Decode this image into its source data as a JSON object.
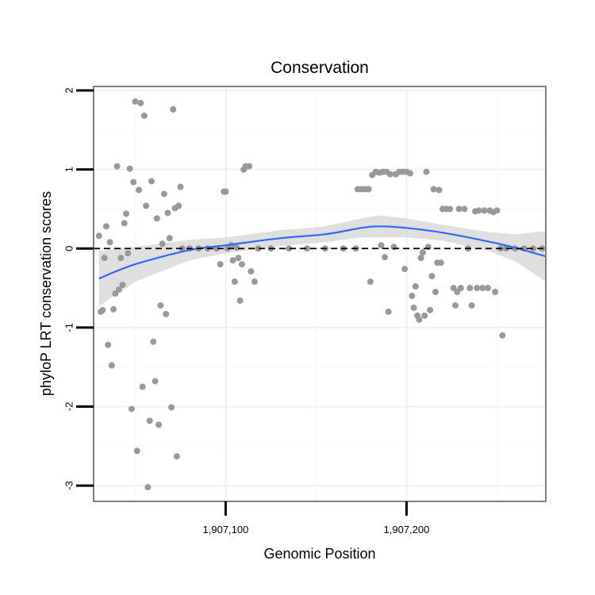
{
  "chart_data": {
    "type": "scatter",
    "title": "Conservation",
    "xlabel": "Genomic Position",
    "ylabel": "phyloP LRT conservation scores",
    "xlim": [
      1907027,
      1907277
    ],
    "ylim": [
      -3.2,
      2.05
    ],
    "x_ticks": [
      {
        "value": 1907100,
        "label": "1,907,100"
      },
      {
        "value": 1907200,
        "label": "1,907,200"
      }
    ],
    "y_ticks": [
      {
        "value": 2,
        "label": "2"
      },
      {
        "value": 1,
        "label": "1"
      },
      {
        "value": 0,
        "label": "0"
      },
      {
        "value": -1,
        "label": "-1"
      },
      {
        "value": -2,
        "label": "-2"
      },
      {
        "value": -3,
        "label": "-3"
      }
    ],
    "reference_line": {
      "y": 0,
      "style": "dashed"
    },
    "colors": {
      "points": "#999999",
      "smooth": "#3366ff",
      "ribbon": "#d9d9d9",
      "frame": "#808080"
    },
    "points": [
      [
        1907030,
        0.16
      ],
      [
        1907031,
        -0.8
      ],
      [
        1907032,
        -0.78
      ],
      [
        1907033,
        -0.12
      ],
      [
        1907034,
        0.28
      ],
      [
        1907035,
        -1.22
      ],
      [
        1907036,
        0.08
      ],
      [
        1907037,
        -1.48
      ],
      [
        1907038,
        -0.77
      ],
      [
        1907039,
        -0.57
      ],
      [
        1907040,
        1.04
      ],
      [
        1907041,
        -0.52
      ],
      [
        1907042,
        -0.12
      ],
      [
        1907043,
        -0.46
      ],
      [
        1907044,
        0.32
      ],
      [
        1907045,
        0.44
      ],
      [
        1907046,
        -0.06
      ],
      [
        1907047,
        1.01
      ],
      [
        1907048,
        -2.03
      ],
      [
        1907049,
        0.84
      ],
      [
        1907050,
        1.86
      ],
      [
        1907051,
        -2.56
      ],
      [
        1907052,
        0.74
      ],
      [
        1907053,
        1.84
      ],
      [
        1907054,
        -1.75
      ],
      [
        1907055,
        1.68
      ],
      [
        1907056,
        0.54
      ],
      [
        1907057,
        -3.02
      ],
      [
        1907058,
        -2.18
      ],
      [
        1907059,
        0.85
      ],
      [
        1907060,
        -1.18
      ],
      [
        1907061,
        -1.68
      ],
      [
        1907062,
        0.38
      ],
      [
        1907063,
        -2.23
      ],
      [
        1907064,
        -0.72
      ],
      [
        1907065,
        0.06
      ],
      [
        1907066,
        0.69
      ],
      [
        1907067,
        -0.83
      ],
      [
        1907068,
        0.45
      ],
      [
        1907069,
        0.13
      ],
      [
        1907070,
        -2.01
      ],
      [
        1907071,
        1.76
      ],
      [
        1907072,
        0.51
      ],
      [
        1907073,
        -2.63
      ],
      [
        1907074,
        0.54
      ],
      [
        1907075,
        0.78
      ],
      [
        1907076,
        0.0
      ],
      [
        1907080,
        0.0
      ],
      [
        1907085,
        0.0
      ],
      [
        1907090,
        0.0
      ],
      [
        1907095,
        0.0
      ],
      [
        1907097,
        -0.2
      ],
      [
        1907099,
        0.72
      ],
      [
        1907100,
        0.72
      ],
      [
        1907101,
        0.0
      ],
      [
        1907103,
        0.04
      ],
      [
        1907104,
        -0.15
      ],
      [
        1907105,
        -0.42
      ],
      [
        1907106,
        0.01
      ],
      [
        1907107,
        -0.12
      ],
      [
        1907108,
        -0.66
      ],
      [
        1907109,
        -0.2
      ],
      [
        1907110,
        1.0
      ],
      [
        1907111,
        1.04
      ],
      [
        1907113,
        1.04
      ],
      [
        1907114,
        -0.29
      ],
      [
        1907116,
        -0.42
      ],
      [
        1907118,
        0.0
      ],
      [
        1907125,
        0.0
      ],
      [
        1907135,
        0.0
      ],
      [
        1907145,
        0.0
      ],
      [
        1907155,
        0.0
      ],
      [
        1907165,
        0.0
      ],
      [
        1907172,
        0.0
      ],
      [
        1907173,
        0.75
      ],
      [
        1907175,
        0.75
      ],
      [
        1907177,
        0.75
      ],
      [
        1907179,
        0.75
      ],
      [
        1907180,
        -0.42
      ],
      [
        1907181,
        0.93
      ],
      [
        1907183,
        0.97
      ],
      [
        1907185,
        0.96
      ],
      [
        1907186,
        0.04
      ],
      [
        1907187,
        0.97
      ],
      [
        1907188,
        -0.11
      ],
      [
        1907189,
        0.97
      ],
      [
        1907190,
        -0.8
      ],
      [
        1907191,
        0.94
      ],
      [
        1907193,
        0.02
      ],
      [
        1907194,
        0.94
      ],
      [
        1907196,
        0.97
      ],
      [
        1907198,
        0.97
      ],
      [
        1907199,
        -0.26
      ],
      [
        1907200,
        0.97
      ],
      [
        1907202,
        0.95
      ],
      [
        1907203,
        -0.6
      ],
      [
        1907204,
        -0.75
      ],
      [
        1907205,
        -0.48
      ],
      [
        1907206,
        -0.85
      ],
      [
        1907207,
        -0.9
      ],
      [
        1907208,
        -0.12
      ],
      [
        1907209,
        -0.05
      ],
      [
        1907210,
        -0.85
      ],
      [
        1907211,
        0.97
      ],
      [
        1907212,
        0.02
      ],
      [
        1907213,
        -0.78
      ],
      [
        1907214,
        -0.35
      ],
      [
        1907215,
        0.75
      ],
      [
        1907216,
        -0.55
      ],
      [
        1907217,
        -0.18
      ],
      [
        1907218,
        0.74
      ],
      [
        1907219,
        -0.18
      ],
      [
        1907220,
        0.5
      ],
      [
        1907222,
        0.5
      ],
      [
        1907224,
        0.5
      ],
      [
        1907226,
        -0.5
      ],
      [
        1907227,
        -0.72
      ],
      [
        1907228,
        -0.55
      ],
      [
        1907229,
        0.5
      ],
      [
        1907230,
        -0.5
      ],
      [
        1907232,
        0.5
      ],
      [
        1907234,
        0.0
      ],
      [
        1907235,
        -0.5
      ],
      [
        1907236,
        -0.72
      ],
      [
        1907238,
        0.47
      ],
      [
        1907239,
        -0.5
      ],
      [
        1907240,
        0.48
      ],
      [
        1907242,
        -0.5
      ],
      [
        1907243,
        0.48
      ],
      [
        1907245,
        -0.5
      ],
      [
        1907246,
        0.48
      ],
      [
        1907248,
        0.46
      ],
      [
        1907249,
        -0.55
      ],
      [
        1907250,
        0.48
      ],
      [
        1907252,
        0.0
      ],
      [
        1907253,
        -1.1
      ],
      [
        1907255,
        0.0
      ],
      [
        1907260,
        0.0
      ],
      [
        1907265,
        0.0
      ],
      [
        1907270,
        0.0
      ],
      [
        1907275,
        0.0
      ]
    ],
    "smooth": [
      [
        1907030,
        -0.38
      ],
      [
        1907050,
        -0.2
      ],
      [
        1907080,
        -0.02
      ],
      [
        1907100,
        0.04
      ],
      [
        1907130,
        0.13
      ],
      [
        1907155,
        0.18
      ],
      [
        1907175,
        0.26
      ],
      [
        1907185,
        0.28
      ],
      [
        1907200,
        0.26
      ],
      [
        1907220,
        0.2
      ],
      [
        1907245,
        0.09
      ],
      [
        1907260,
        0.01
      ],
      [
        1907277,
        -0.1
      ]
    ],
    "ribbon_halfwidth": [
      [
        1907030,
        0.35
      ],
      [
        1907050,
        0.22
      ],
      [
        1907080,
        0.13
      ],
      [
        1907100,
        0.1
      ],
      [
        1907130,
        0.1
      ],
      [
        1907155,
        0.1
      ],
      [
        1907175,
        0.12
      ],
      [
        1907185,
        0.14
      ],
      [
        1907200,
        0.12
      ],
      [
        1907220,
        0.1
      ],
      [
        1907245,
        0.12
      ],
      [
        1907260,
        0.17
      ],
      [
        1907277,
        0.32
      ]
    ]
  }
}
